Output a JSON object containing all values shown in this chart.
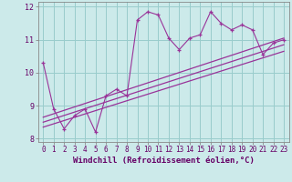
{
  "title": "",
  "xlabel": "Windchill (Refroidissement éolien,°C)",
  "ylabel": "",
  "bg_color": "#cceaea",
  "line_color": "#993399",
  "grid_color": "#99cccc",
  "xlim": [
    -0.5,
    23.5
  ],
  "ylim": [
    7.9,
    12.15
  ],
  "yticks": [
    8,
    9,
    10,
    11,
    12
  ],
  "xticks": [
    0,
    1,
    2,
    3,
    4,
    5,
    6,
    7,
    8,
    9,
    10,
    11,
    12,
    13,
    14,
    15,
    16,
    17,
    18,
    19,
    20,
    21,
    22,
    23
  ],
  "series1_x": [
    0,
    1,
    2,
    3,
    4,
    5,
    6,
    7,
    8,
    9,
    10,
    11,
    12,
    13,
    14,
    15,
    16,
    17,
    18,
    19,
    20,
    21,
    22,
    23
  ],
  "series1_y": [
    10.3,
    8.9,
    8.3,
    8.7,
    8.9,
    8.2,
    9.3,
    9.5,
    9.3,
    11.6,
    11.85,
    11.75,
    11.05,
    10.7,
    11.05,
    11.15,
    11.85,
    11.5,
    11.3,
    11.45,
    11.3,
    10.55,
    10.9,
    11.0
  ],
  "line1_x": [
    0,
    23
  ],
  "line1_y": [
    8.65,
    11.05
  ],
  "line2_x": [
    0,
    23
  ],
  "line2_y": [
    8.5,
    10.85
  ],
  "line3_x": [
    0,
    23
  ],
  "line3_y": [
    8.35,
    10.65
  ],
  "tick_fontsize": 5.5,
  "xlabel_fontsize": 6.5,
  "marker_size": 3.0
}
